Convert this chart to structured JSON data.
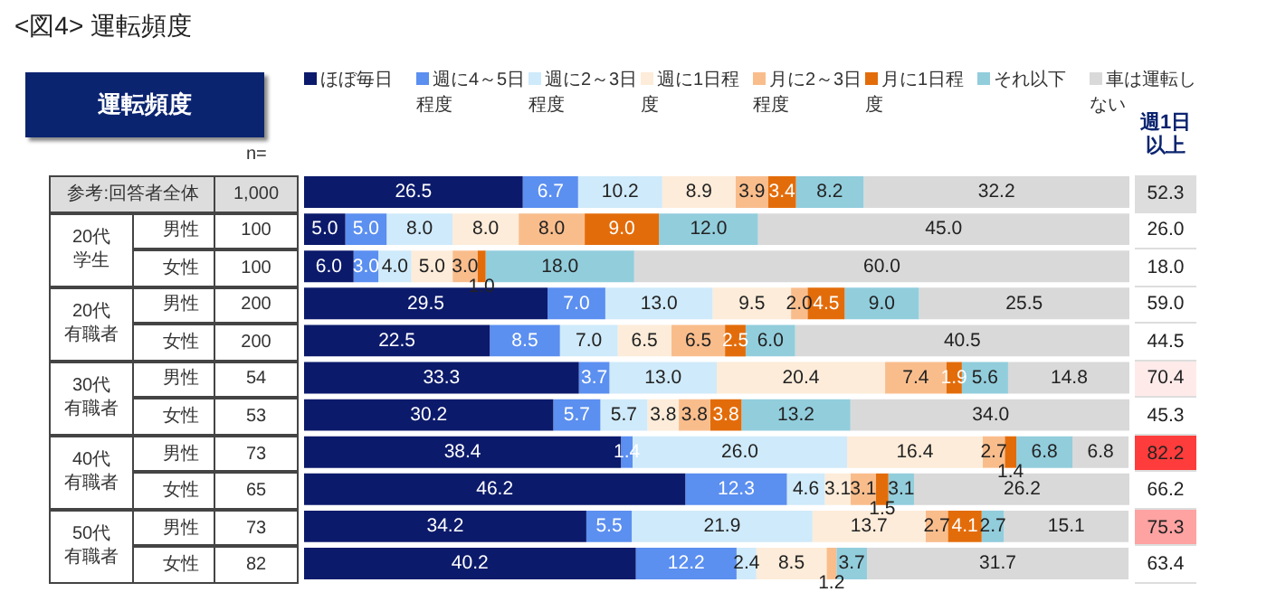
{
  "chart_data": {
    "type": "bar",
    "orientation": "horizontal",
    "stacked": true,
    "title": "<図4> 運転頻度",
    "categories": [
      "参考:回答者全体",
      "男性",
      "女性",
      "男性",
      "女性",
      "男性",
      "女性",
      "男性",
      "女性",
      "男性",
      "女性"
    ],
    "series": [
      {
        "name": "ほぼ毎日",
        "color": "#0c1a6b",
        "values": [
          26.5,
          5.0,
          6.0,
          29.5,
          22.5,
          33.3,
          30.2,
          38.4,
          46.2,
          34.2,
          40.2
        ],
        "value_labels": [
          "26.5",
          "5.0",
          "6.0",
          "29.5",
          "22.5",
          "33.3",
          "30.2",
          "38.4",
          "46.2",
          "34.2",
          "40.2"
        ]
      },
      {
        "name": "週に4～5日程度",
        "color": "#5b8ff0",
        "values": [
          6.7,
          5.0,
          3.0,
          7.0,
          8.5,
          3.7,
          5.7,
          1.4,
          12.3,
          5.5,
          12.2
        ],
        "value_labels": [
          "6.7",
          "5.0",
          "3.0",
          "7.0",
          "8.5",
          "3.7",
          "5.7",
          "1.4",
          "12.3",
          "5.5",
          "12.2"
        ]
      },
      {
        "name": "週に2～3日程度",
        "color": "#cfeafa",
        "values": [
          10.2,
          8.0,
          4.0,
          13.0,
          7.0,
          13.0,
          5.7,
          26.0,
          4.6,
          21.9,
          2.4
        ],
        "value_labels": [
          "10.2",
          "8.0",
          "4.0",
          "13.0",
          "7.0",
          "13.0",
          "5.7",
          "26.0",
          "4.6",
          "21.9",
          "2.4"
        ]
      },
      {
        "name": "週に1日程度",
        "color": "#fdecd9",
        "values": [
          8.9,
          8.0,
          5.0,
          9.5,
          6.5,
          20.4,
          3.8,
          16.4,
          3.1,
          13.7,
          8.5
        ],
        "value_labels": [
          "8.9",
          "8.0",
          "5.0",
          "9.5",
          "6.5",
          "20.4",
          "3.8",
          "16.4",
          "3.1",
          "13.7",
          "8.5"
        ]
      },
      {
        "name": "月に2～3日程度",
        "color": "#f9bd8c",
        "values": [
          3.9,
          8.0,
          3.0,
          2.0,
          6.5,
          7.4,
          3.8,
          2.7,
          3.1,
          2.7,
          1.2
        ],
        "value_labels": [
          "3.9",
          "8.0",
          "3.0",
          "2.0",
          "6.5",
          "7.4",
          "3.8",
          "2.7",
          "3.1",
          "2.7",
          "1.2"
        ]
      },
      {
        "name": "月に1日程度",
        "color": "#e36c0a",
        "values": [
          3.4,
          9.0,
          1.0,
          4.5,
          2.5,
          1.9,
          3.8,
          1.4,
          1.5,
          4.1,
          0
        ],
        "value_labels": [
          "3.4",
          "9.0",
          "1.0",
          "4.5",
          "2.5",
          "1.9",
          "3.8",
          "1.4",
          "1.5",
          "4.1",
          null
        ]
      },
      {
        "name": "それ以下",
        "color": "#92cddc",
        "values": [
          8.2,
          12.0,
          18.0,
          9.0,
          6.0,
          5.6,
          13.2,
          6.8,
          3.1,
          2.7,
          3.7
        ],
        "value_labels": [
          "8.2",
          "12.0",
          "18.0",
          "9.0",
          "6.0",
          "5.6",
          "13.2",
          "6.8",
          "3.1",
          "2.7",
          "3.7"
        ]
      },
      {
        "name": "車は運転しない",
        "color": "#d9d9d9",
        "values": [
          32.2,
          45.0,
          60.0,
          25.5,
          40.5,
          14.8,
          34.0,
          6.8,
          26.2,
          15.1,
          31.7
        ],
        "value_labels": [
          "32.2",
          "45.0",
          "60.0",
          "25.5",
          "40.5",
          "14.8",
          "34.0",
          "6.8",
          "26.2",
          "15.1",
          "31.7"
        ]
      }
    ],
    "xlim": [
      0,
      100
    ],
    "tick_labels": false,
    "legend": "top",
    "annotations": [
      "運転頻度",
      "n=",
      "週1日以上",
      "20代学生",
      "20代有職者",
      "30代有職者",
      "40代有職者",
      "50代有職者",
      "1,000",
      "100",
      "100",
      "200",
      "200",
      "54",
      "53",
      "73",
      "65",
      "73",
      "82",
      "52.3",
      "26.0",
      "18.0",
      "59.0",
      "44.5",
      "70.4",
      "45.3",
      "82.2",
      "66.2",
      "75.3",
      "63.4"
    ]
  }
}
